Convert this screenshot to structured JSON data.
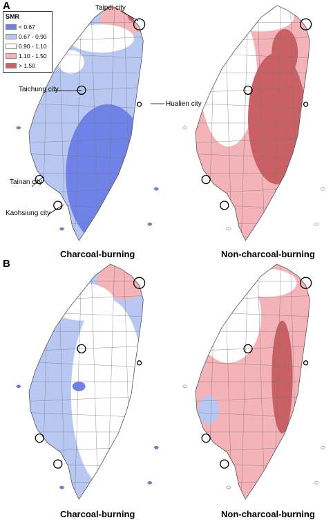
{
  "panels": [
    {
      "label": "A",
      "left_caption": "Charcoal-burning",
      "right_caption": "Non-charcoal-burning"
    },
    {
      "label": "B",
      "left_caption": "Charcoal-burning",
      "right_caption": "Non-charcoal-burning"
    }
  ],
  "legend": {
    "title": "SMR",
    "items": [
      {
        "label": "< 0.67",
        "color": "#6f82e8"
      },
      {
        "label": "0.67 - 0.90",
        "color": "#b9c8f2"
      },
      {
        "label": "0.90 - 1.10",
        "color": "#ffffff"
      },
      {
        "label": "1.10 - 1.50",
        "color": "#f3b3b8"
      },
      {
        "label": "> 1.50",
        "color": "#c96065"
      }
    ]
  },
  "cities": {
    "taipei": "Taipei city",
    "taichung": "Taichung city",
    "hualien": "Hualien city",
    "tainan": "Tainan city",
    "kaohsiung": "Kaohsiung city"
  },
  "colors": {
    "lt05": "#6f82e8",
    "lt09": "#b9c8f2",
    "mid": "#ffffff",
    "gt11": "#f3b3b8",
    "gt15": "#c96065",
    "border": "#777777",
    "city_border": "#000000"
  }
}
